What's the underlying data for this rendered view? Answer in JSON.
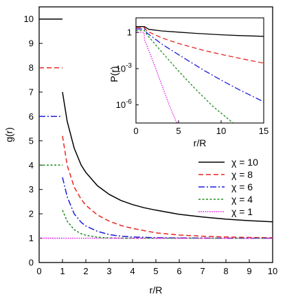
{
  "chart_data": [
    {
      "type": "line",
      "xlabel": "r/R",
      "ylabel": "g(r)",
      "xlim": [
        0,
        10
      ],
      "ylim": [
        0,
        10.5
      ],
      "xticks": [
        "0",
        "1",
        "2",
        "3",
        "4",
        "5",
        "6",
        "7",
        "8",
        "9",
        "10"
      ],
      "yticks": [
        "0",
        "1",
        "2",
        "3",
        "4",
        "5",
        "6",
        "7",
        "8",
        "9",
        "10"
      ],
      "legend_position": "right",
      "series": [
        {
          "name": "χ = 10",
          "color": "#000000",
          "dash": "solid",
          "inner_value": 10,
          "x": [
            1,
            1.2,
            1.5,
            1.8,
            2,
            2.5,
            3,
            3.5,
            4,
            4.5,
            5,
            6,
            7,
            8,
            9,
            10
          ],
          "y": [
            7.0,
            5.8,
            4.7,
            4.0,
            3.7,
            3.15,
            2.8,
            2.55,
            2.38,
            2.25,
            2.15,
            1.98,
            1.87,
            1.78,
            1.72,
            1.67
          ]
        },
        {
          "name": "χ = 8",
          "color": "#e8251f",
          "dash": "dashed",
          "inner_value": 8,
          "x": [
            1,
            1.2,
            1.5,
            1.8,
            2,
            2.5,
            3,
            3.5,
            4,
            5,
            6,
            7,
            8,
            9,
            10
          ],
          "y": [
            5.2,
            4.0,
            3.1,
            2.6,
            2.35,
            1.95,
            1.7,
            1.52,
            1.4,
            1.22,
            1.13,
            1.08,
            1.05,
            1.03,
            1.02
          ]
        },
        {
          "name": "χ = 6",
          "color": "#1a1adb",
          "dash": "dashdot",
          "inner_value": 6,
          "x": [
            1,
            1.2,
            1.5,
            1.8,
            2,
            2.5,
            3,
            3.5,
            4,
            5,
            6,
            7,
            8,
            10
          ],
          "y": [
            3.5,
            2.7,
            2.0,
            1.65,
            1.5,
            1.28,
            1.15,
            1.08,
            1.05,
            1.02,
            1.01,
            1.005,
            1.0,
            1.0
          ]
        },
        {
          "name": "χ = 4",
          "color": "#1e8a1e",
          "dash": "shortdash",
          "inner_value": 4,
          "x": [
            1,
            1.2,
            1.5,
            1.8,
            2,
            2.5,
            3,
            3.5,
            4,
            5,
            10
          ],
          "y": [
            2.15,
            1.7,
            1.35,
            1.18,
            1.12,
            1.04,
            1.01,
            1.0,
            1.0,
            1.0,
            1.0
          ]
        },
        {
          "name": "χ = 1",
          "color": "#e020e0",
          "dash": "dotted",
          "inner_value": 1,
          "x": [
            0,
            10
          ],
          "y": [
            1.0,
            1.0
          ]
        }
      ]
    },
    {
      "type": "line",
      "inset": true,
      "xlabel": "r/R",
      "ylabel": "P(r)",
      "xlim": [
        0,
        15
      ],
      "ylim_log10": [
        -7.5,
        1.2
      ],
      "yscale": "log",
      "xticks": [
        "0",
        "5",
        "10",
        "15"
      ],
      "yticks": [
        "1",
        "10-3",
        "10-6"
      ],
      "series": [
        {
          "name": "χ = 10",
          "color": "#000000",
          "dash": "solid",
          "x": [
            0,
            1,
            1.5,
            3,
            5,
            7,
            10,
            12,
            15
          ],
          "log10_y": [
            0.48,
            0.48,
            0.25,
            0.12,
            0.02,
            -0.08,
            -0.2,
            -0.26,
            -0.33
          ]
        },
        {
          "name": "χ = 8",
          "color": "#e8251f",
          "dash": "dashed",
          "x": [
            0,
            1,
            1.3,
            3,
            5,
            8,
            10,
            12,
            15
          ],
          "log10_y": [
            0.38,
            0.38,
            0.1,
            -0.45,
            -0.92,
            -1.5,
            -1.82,
            -2.12,
            -2.55
          ]
        },
        {
          "name": "χ = 6",
          "color": "#1a1adb",
          "dash": "dashdot",
          "x": [
            0,
            1,
            1.3,
            3,
            5,
            8,
            10,
            12,
            15
          ],
          "log10_y": [
            0.28,
            0.28,
            -0.05,
            -0.95,
            -1.85,
            -3.15,
            -3.95,
            -4.7,
            -5.75
          ]
        },
        {
          "name": "χ = 4",
          "color": "#1e8a1e",
          "dash": "shortdash",
          "x": [
            0,
            1,
            1.3,
            3,
            5,
            7,
            9,
            11.4
          ],
          "log10_y": [
            0.15,
            0.15,
            -0.2,
            -1.6,
            -3.2,
            -4.7,
            -6.1,
            -7.5
          ]
        },
        {
          "name": "χ = 1",
          "color": "#e020e0",
          "dash": "dotted",
          "x": [
            0,
            0.95,
            1.0,
            2,
            3,
            4,
            4.8
          ],
          "log10_y": [
            0.0,
            0.0,
            -0.6,
            -2.4,
            -4.3,
            -6.2,
            -7.5
          ]
        }
      ]
    }
  ]
}
